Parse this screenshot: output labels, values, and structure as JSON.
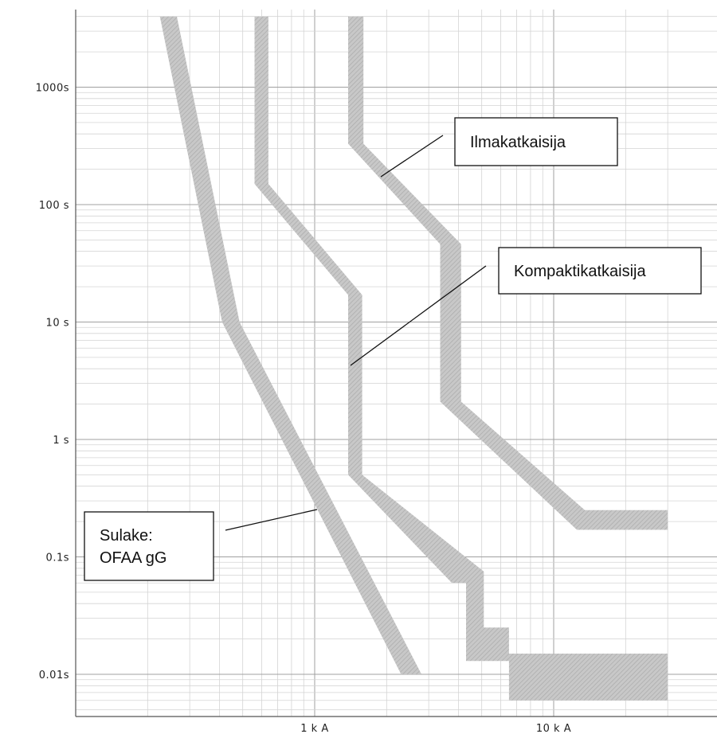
{
  "chart_data": {
    "type": "line",
    "title": "",
    "xlabel": "",
    "ylabel": "",
    "x_scale": "log",
    "y_scale": "log",
    "x_unit": "A",
    "y_unit": "s",
    "xlim": [
      155,
      30000
    ],
    "ylim": [
      0.004,
      4000
    ],
    "grid": true,
    "x_ticks": [
      {
        "value": 1000,
        "label": "1 k A"
      },
      {
        "value": 10000,
        "label": "10 k A"
      }
    ],
    "y_ticks": [
      {
        "value": 1000,
        "label": "1000s"
      },
      {
        "value": 100,
        "label": "100 s"
      },
      {
        "value": 10,
        "label": "10 s"
      },
      {
        "value": 1,
        "label": "1 s"
      },
      {
        "value": 0.1,
        "label": "0.1s"
      },
      {
        "value": 0.01,
        "label": "0.01s"
      }
    ],
    "series": [
      {
        "name": "Sulake: OFAA gG",
        "band": true,
        "min_curve": [
          [
            225,
            4000
          ],
          [
            410,
            10
          ],
          [
            2300,
            0.01
          ]
        ],
        "max_curve": [
          [
            265,
            4000
          ],
          [
            485,
            10
          ],
          [
            2800,
            0.01
          ]
        ]
      },
      {
        "name": "Kompaktikatkaisija",
        "band": true,
        "min_curve": [
          [
            560,
            4000
          ],
          [
            560,
            150
          ],
          [
            1380,
            17
          ],
          [
            1380,
            0.5
          ],
          [
            3750,
            0.06
          ],
          [
            4300,
            0.06
          ],
          [
            4300,
            0.013
          ],
          [
            6500,
            0.013
          ],
          [
            6500,
            0.006
          ],
          [
            30000,
            0.006
          ]
        ],
        "max_curve": [
          [
            640,
            4000
          ],
          [
            640,
            150
          ],
          [
            1580,
            17
          ],
          [
            1580,
            0.5
          ],
          [
            5100,
            0.075
          ],
          [
            5100,
            0.025
          ],
          [
            6500,
            0.025
          ],
          [
            6500,
            0.015
          ],
          [
            30000,
            0.015
          ]
        ]
      },
      {
        "name": "Ilmakatkaisija",
        "band": true,
        "min_curve": [
          [
            1380,
            4000
          ],
          [
            1380,
            330
          ],
          [
            3350,
            46
          ],
          [
            3350,
            2.1
          ],
          [
            12500,
            0.17
          ],
          [
            30000,
            0.17
          ]
        ],
        "max_curve": [
          [
            1600,
            4000
          ],
          [
            1600,
            330
          ],
          [
            4100,
            46
          ],
          [
            4100,
            2.1
          ],
          [
            13500,
            0.25
          ],
          [
            30000,
            0.25
          ]
        ]
      }
    ],
    "annotations": [
      {
        "lines": [
          "Ilmakatkaisija"
        ],
        "series": "Ilmakatkaisija"
      },
      {
        "lines": [
          "Kompaktikatkaisija"
        ],
        "series": "Kompaktikatkaisija"
      },
      {
        "lines": [
          "Sulake:",
          "OFAA gG"
        ],
        "series": "Sulake: OFAA gG"
      }
    ]
  },
  "colors": {
    "band_fill": "#c8c8c8",
    "band_hatch": "#a8a8a8",
    "grid_major": "#a0a0a0",
    "grid_minor": "#d4d4d4",
    "axis": "#555555",
    "text": "#111111"
  }
}
